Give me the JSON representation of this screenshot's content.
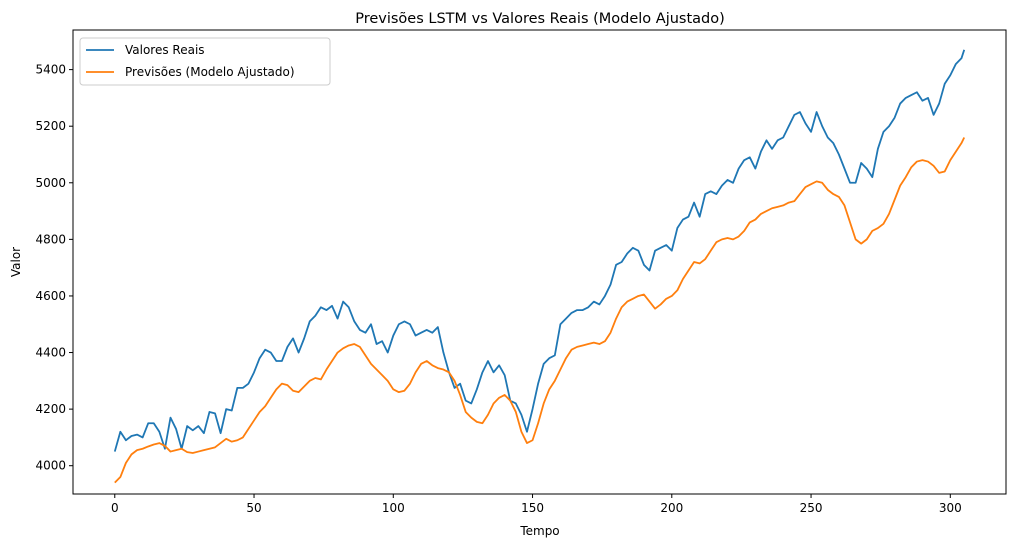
{
  "chart_data": {
    "type": "line",
    "title": "Previsões LSTM vs Valores Reais (Modelo Ajustado)",
    "xlabel": "Tempo",
    "ylabel": "Valor",
    "xlim": [
      -15,
      320
    ],
    "ylim": [
      3900,
      5540
    ],
    "xticks": [
      0,
      50,
      100,
      150,
      200,
      250,
      300
    ],
    "yticks": [
      4000,
      4200,
      4400,
      4600,
      4800,
      5000,
      5200,
      5400
    ],
    "grid": false,
    "legend_position": "top-left",
    "series": [
      {
        "name": "Valores Reais",
        "color": "#1f77b4",
        "x": [
          0,
          2,
          4,
          6,
          8,
          10,
          12,
          14,
          16,
          18,
          20,
          22,
          24,
          26,
          28,
          30,
          32,
          34,
          36,
          38,
          40,
          42,
          44,
          46,
          48,
          50,
          52,
          54,
          56,
          58,
          60,
          62,
          64,
          66,
          68,
          70,
          72,
          74,
          76,
          78,
          80,
          82,
          84,
          86,
          88,
          90,
          92,
          94,
          96,
          98,
          100,
          102,
          104,
          106,
          108,
          110,
          112,
          114,
          116,
          118,
          120,
          122,
          124,
          126,
          128,
          130,
          132,
          134,
          136,
          138,
          140,
          142,
          144,
          146,
          148,
          150,
          152,
          154,
          156,
          158,
          160,
          162,
          164,
          166,
          168,
          170,
          172,
          174,
          176,
          178,
          180,
          182,
          184,
          186,
          188,
          190,
          192,
          194,
          196,
          198,
          200,
          202,
          204,
          206,
          208,
          210,
          212,
          214,
          216,
          218,
          220,
          222,
          224,
          226,
          228,
          230,
          232,
          234,
          236,
          238,
          240,
          242,
          244,
          246,
          248,
          250,
          252,
          254,
          256,
          258,
          260,
          262,
          264,
          266,
          268,
          270,
          272,
          274,
          276,
          278,
          280,
          282,
          284,
          286,
          288,
          290,
          292,
          294,
          296,
          298,
          300,
          302,
          304,
          305
        ],
        "values": [
          4050,
          4120,
          4090,
          4105,
          4110,
          4100,
          4150,
          4150,
          4120,
          4060,
          4170,
          4130,
          4060,
          4140,
          4125,
          4140,
          4115,
          4190,
          4185,
          4115,
          4200,
          4195,
          4275,
          4275,
          4290,
          4330,
          4380,
          4410,
          4400,
          4370,
          4370,
          4420,
          4450,
          4400,
          4450,
          4510,
          4530,
          4560,
          4550,
          4565,
          4520,
          4580,
          4560,
          4510,
          4480,
          4470,
          4500,
          4430,
          4440,
          4400,
          4460,
          4500,
          4510,
          4500,
          4460,
          4470,
          4480,
          4470,
          4490,
          4400,
          4330,
          4275,
          4290,
          4230,
          4220,
          4270,
          4330,
          4370,
          4330,
          4355,
          4320,
          4230,
          4220,
          4180,
          4120,
          4200,
          4290,
          4360,
          4380,
          4390,
          4500,
          4520,
          4540,
          4550,
          4550,
          4560,
          4580,
          4570,
          4600,
          4640,
          4710,
          4720,
          4750,
          4770,
          4760,
          4710,
          4690,
          4760,
          4770,
          4780,
          4760,
          4840,
          4870,
          4880,
          4930,
          4880,
          4960,
          4970,
          4960,
          4990,
          5010,
          5000,
          5050,
          5080,
          5090,
          5050,
          5110,
          5150,
          5120,
          5150,
          5160,
          5200,
          5240,
          5250,
          5210,
          5180,
          5250,
          5200,
          5160,
          5140,
          5100,
          5050,
          5000,
          5000,
          5070,
          5050,
          5020,
          5120,
          5180,
          5200,
          5230,
          5280,
          5300,
          5310,
          5320,
          5290,
          5300,
          5240,
          5280,
          5350,
          5380,
          5420,
          5440,
          5470
        ]
      },
      {
        "name": "Previsões (Modelo Ajustado)",
        "color": "#ff7f0e",
        "x": [
          0,
          2,
          4,
          6,
          8,
          10,
          12,
          14,
          16,
          18,
          20,
          22,
          24,
          26,
          28,
          30,
          32,
          34,
          36,
          38,
          40,
          42,
          44,
          46,
          48,
          50,
          52,
          54,
          56,
          58,
          60,
          62,
          64,
          66,
          68,
          70,
          72,
          74,
          76,
          78,
          80,
          82,
          84,
          86,
          88,
          90,
          92,
          94,
          96,
          98,
          100,
          102,
          104,
          106,
          108,
          110,
          112,
          114,
          116,
          118,
          120,
          122,
          124,
          126,
          128,
          130,
          132,
          134,
          136,
          138,
          140,
          142,
          144,
          146,
          148,
          150,
          152,
          154,
          156,
          158,
          160,
          162,
          164,
          166,
          168,
          170,
          172,
          174,
          176,
          178,
          180,
          182,
          184,
          186,
          188,
          190,
          192,
          194,
          196,
          198,
          200,
          202,
          204,
          206,
          208,
          210,
          212,
          214,
          216,
          218,
          220,
          222,
          224,
          226,
          228,
          230,
          232,
          234,
          236,
          238,
          240,
          242,
          244,
          246,
          248,
          250,
          252,
          254,
          256,
          258,
          260,
          262,
          264,
          266,
          268,
          270,
          272,
          274,
          276,
          278,
          280,
          282,
          284,
          286,
          288,
          290,
          292,
          294,
          296,
          298,
          300,
          302,
          304,
          305
        ],
        "values": [
          3940,
          3960,
          4010,
          4040,
          4055,
          4060,
          4068,
          4075,
          4080,
          4070,
          4050,
          4055,
          4060,
          4048,
          4045,
          4050,
          4055,
          4060,
          4065,
          4080,
          4095,
          4085,
          4090,
          4100,
          4130,
          4160,
          4190,
          4210,
          4240,
          4270,
          4290,
          4285,
          4265,
          4260,
          4280,
          4300,
          4310,
          4305,
          4340,
          4370,
          4400,
          4415,
          4425,
          4430,
          4420,
          4390,
          4360,
          4340,
          4320,
          4300,
          4270,
          4260,
          4265,
          4290,
          4330,
          4360,
          4370,
          4355,
          4345,
          4340,
          4330,
          4300,
          4250,
          4190,
          4170,
          4155,
          4150,
          4180,
          4220,
          4240,
          4250,
          4230,
          4190,
          4120,
          4080,
          4090,
          4150,
          4220,
          4270,
          4300,
          4340,
          4380,
          4410,
          4420,
          4425,
          4430,
          4435,
          4430,
          4440,
          4470,
          4520,
          4560,
          4580,
          4590,
          4600,
          4605,
          4580,
          4555,
          4570,
          4590,
          4600,
          4620,
          4660,
          4690,
          4720,
          4715,
          4730,
          4760,
          4790,
          4800,
          4805,
          4800,
          4810,
          4830,
          4860,
          4870,
          4890,
          4900,
          4910,
          4915,
          4920,
          4930,
          4935,
          4960,
          4985,
          4995,
          5005,
          5000,
          4975,
          4960,
          4950,
          4920,
          4860,
          4800,
          4785,
          4800,
          4830,
          4840,
          4855,
          4890,
          4940,
          4990,
          5020,
          5055,
          5075,
          5080,
          5075,
          5060,
          5035,
          5040,
          5080,
          5110,
          5140,
          5160
        ]
      }
    ]
  }
}
